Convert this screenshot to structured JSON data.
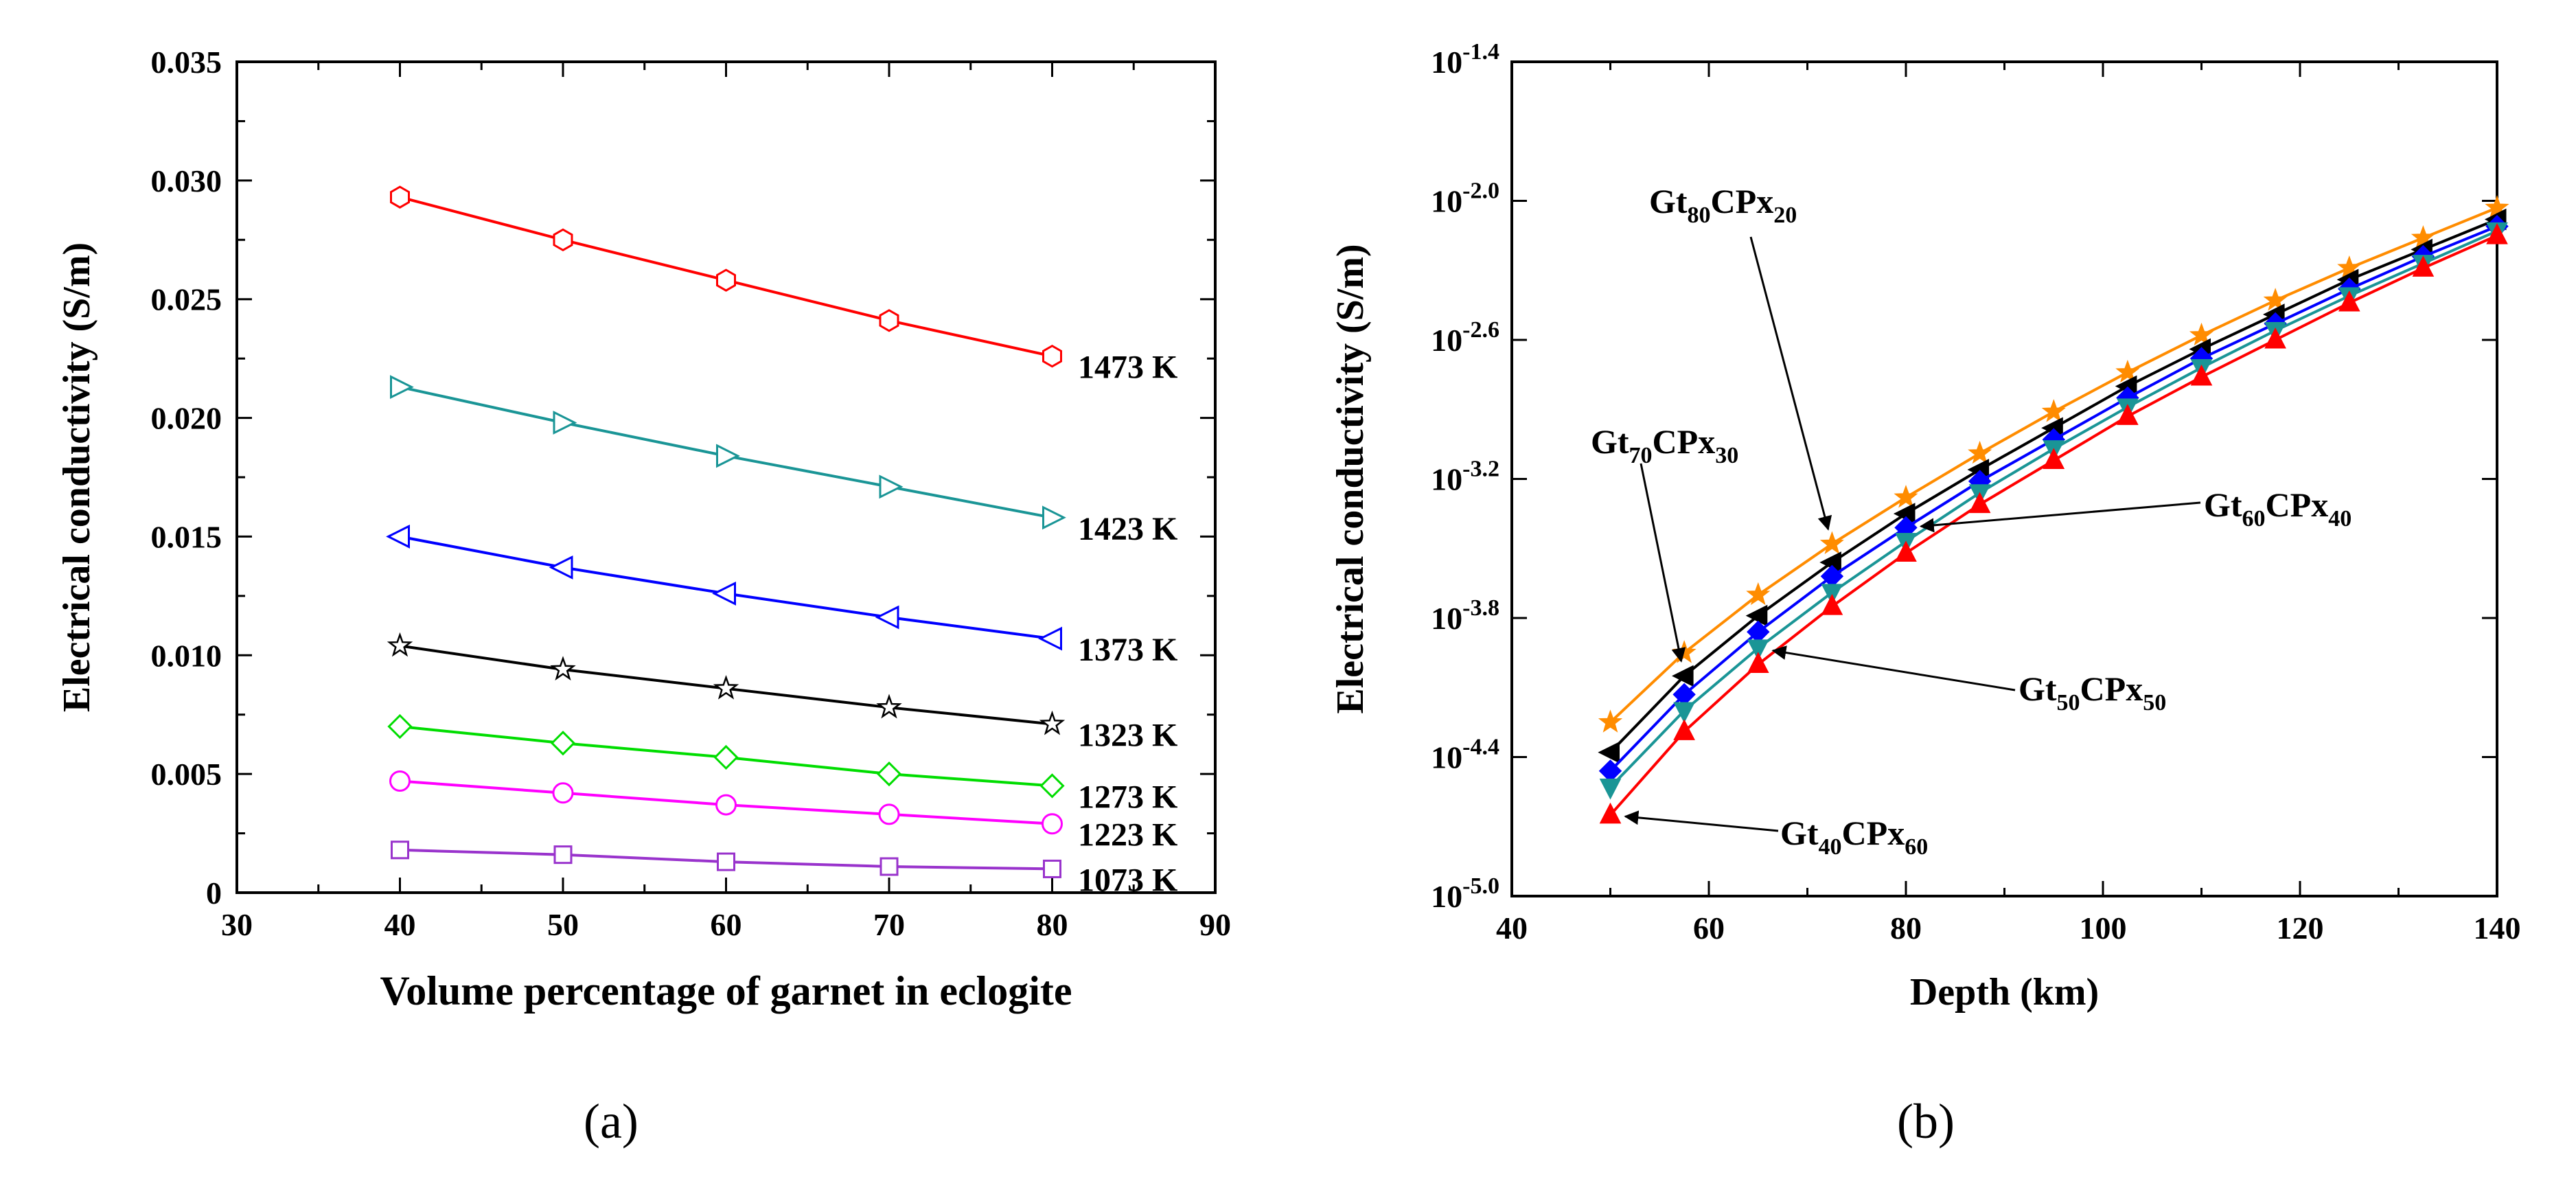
{
  "chart_data": [
    {
      "id": "a",
      "type": "line",
      "title": "",
      "xlabel": "Volume percentage of garnet in eclogite",
      "ylabel": "Electrical conductivity (S/m)",
      "xlim": [
        30,
        90
      ],
      "ylim": [
        0,
        0.035
      ],
      "x_ticks": [
        "30",
        "40",
        "50",
        "60",
        "70",
        "80",
        "90"
      ],
      "y_ticks": [
        "0",
        "0.005",
        "0.010",
        "0.015",
        "0.020",
        "0.025",
        "0.030",
        "0.035"
      ],
      "x": [
        40,
        50,
        60,
        70,
        80
      ],
      "series": [
        {
          "name": "1473 K",
          "color": "#ff0000",
          "marker": "hexagon",
          "values": [
            0.0293,
            0.0275,
            0.0258,
            0.0241,
            0.0226
          ]
        },
        {
          "name": "1423 K",
          "color": "#1a9596",
          "marker": "triangle-right",
          "values": [
            0.0213,
            0.0198,
            0.0184,
            0.0171,
            0.0158
          ]
        },
        {
          "name": "1373 K",
          "color": "#0000ff",
          "marker": "triangle-left",
          "values": [
            0.015,
            0.0137,
            0.0126,
            0.0116,
            0.0107
          ]
        },
        {
          "name": "1323 K",
          "color": "#000000",
          "marker": "star",
          "values": [
            0.0104,
            0.0094,
            0.0086,
            0.0078,
            0.0071
          ]
        },
        {
          "name": "1273 K",
          "color": "#00dd00",
          "marker": "diamond",
          "values": [
            0.007,
            0.0063,
            0.0057,
            0.005,
            0.0045
          ]
        },
        {
          "name": "1223 K",
          "color": "#ff00ff",
          "marker": "circle",
          "values": [
            0.0047,
            0.0042,
            0.0037,
            0.0033,
            0.0029
          ]
        },
        {
          "name": "1073 K",
          "color": "#9933cc",
          "marker": "square",
          "values": [
            0.0018,
            0.0016,
            0.0013,
            0.0011,
            0.001
          ]
        }
      ],
      "panel_label": "(a)"
    },
    {
      "id": "b",
      "type": "line",
      "title": "",
      "xlabel": "Depth (km)",
      "ylabel": "Electrical conductivity (S/m)",
      "yscale": "log10",
      "xlim": [
        40,
        140
      ],
      "ylim": [
        -5.0,
        -1.4
      ],
      "x_ticks": [
        "40",
        "60",
        "80",
        "100",
        "120",
        "140"
      ],
      "y_ticks": [
        {
          "base": "10",
          "exp": "-1.4"
        },
        {
          "base": "10",
          "exp": "-2.0"
        },
        {
          "base": "10",
          "exp": "-2.6"
        },
        {
          "base": "10",
          "exp": "-3.2"
        },
        {
          "base": "10",
          "exp": "-3.8"
        },
        {
          "base": "10",
          "exp": "-4.4"
        },
        {
          "base": "10",
          "exp": "-5.0"
        }
      ],
      "x": [
        50,
        57.5,
        65,
        72.5,
        80,
        87.5,
        95,
        102.5,
        110,
        117.5,
        125,
        132.5,
        140
      ],
      "series": [
        {
          "name": "Gt80CPx20",
          "label": {
            "a": "Gt",
            "b": "80",
            "c": "CPx",
            "d": "20"
          },
          "color": "#ff8c00",
          "marker": "star",
          "values": [
            -4.25,
            -3.95,
            -3.7,
            -3.48,
            -3.28,
            -3.09,
            -2.91,
            -2.74,
            -2.58,
            -2.43,
            -2.29,
            -2.16,
            -2.03
          ]
        },
        {
          "name": "Gt70CPx30",
          "label": {
            "a": "Gt",
            "b": "70",
            "c": "CPx",
            "d": "30"
          },
          "color": "#000000",
          "marker": "triangle-left",
          "values": [
            -4.38,
            -4.05,
            -3.79,
            -3.56,
            -3.35,
            -3.16,
            -2.98,
            -2.8,
            -2.64,
            -2.49,
            -2.34,
            -2.21,
            -2.08
          ]
        },
        {
          "name": "Gt60CPx40",
          "label": {
            "a": "Gt",
            "b": "60",
            "c": "CPx",
            "d": "40"
          },
          "color": "#0000ff",
          "marker": "diamond",
          "values": [
            -4.46,
            -4.13,
            -3.86,
            -3.62,
            -3.41,
            -3.21,
            -3.03,
            -2.85,
            -2.68,
            -2.53,
            -2.38,
            -2.24,
            -2.11
          ]
        },
        {
          "name": "Gt50CPx50",
          "label": {
            "a": "Gt",
            "b": "50",
            "c": "CPx",
            "d": "50"
          },
          "color": "#1a9596",
          "marker": "triangle-down",
          "values": [
            -4.53,
            -4.2,
            -3.93,
            -3.69,
            -3.47,
            -3.26,
            -3.07,
            -2.89,
            -2.72,
            -2.56,
            -2.41,
            -2.27,
            -2.13
          ]
        },
        {
          "name": "Gt40CPx60",
          "label": {
            "a": "Gt",
            "b": "40",
            "c": "CPx",
            "d": "60"
          },
          "color": "#ff0000",
          "marker": "triangle-up",
          "values": [
            -4.65,
            -4.29,
            -4.0,
            -3.75,
            -3.52,
            -3.31,
            -3.12,
            -2.93,
            -2.76,
            -2.6,
            -2.44,
            -2.29,
            -2.15
          ]
        }
      ],
      "panel_label": "(b)"
    }
  ]
}
